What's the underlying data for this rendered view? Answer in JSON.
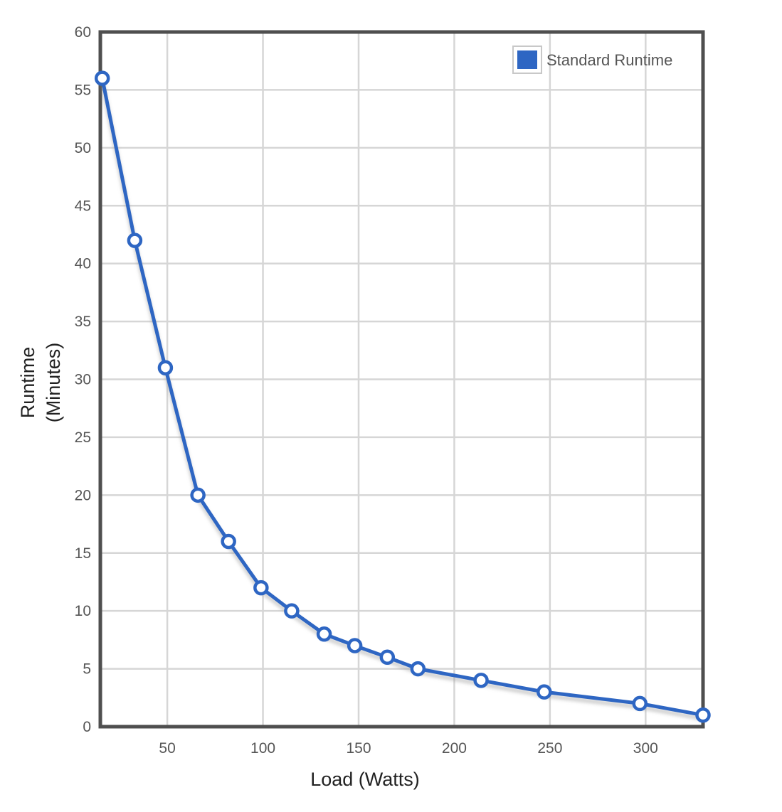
{
  "colors": {
    "series": "#2e66c3",
    "frame": "#4f4f4f",
    "grid": "#d6d6d6",
    "marker_fill": "#ffffff"
  },
  "chart_data": {
    "type": "line",
    "title": "",
    "xlabel": "Load (Watts)",
    "ylabel_lines": [
      "Runtime",
      "(Minutes)"
    ],
    "xlim": [
      15,
      330
    ],
    "ylim": [
      0,
      60
    ],
    "x_ticks": [
      50,
      100,
      150,
      200,
      250,
      300
    ],
    "y_ticks": [
      0,
      5,
      10,
      15,
      20,
      25,
      30,
      35,
      40,
      45,
      50,
      55,
      60
    ],
    "grid": true,
    "legend_position": "top-right",
    "series": [
      {
        "name": "Standard Runtime",
        "x": [
          16,
          33,
          49,
          66,
          82,
          99,
          115,
          132,
          148,
          165,
          181,
          214,
          247,
          297,
          330
        ],
        "y": [
          56,
          42,
          31,
          20,
          16,
          12,
          10,
          8,
          7,
          6,
          5,
          4,
          3,
          2,
          1
        ]
      }
    ]
  }
}
